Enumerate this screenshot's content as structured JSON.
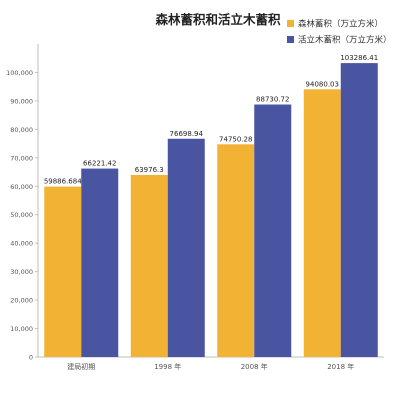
{
  "chart_data": {
    "type": "bar",
    "title": "森林蓄积和活立木蓄积",
    "xlabel": "",
    "ylabel": "",
    "categories": [
      "建局初期",
      "1998 年",
      "2008 年",
      "2018 年"
    ],
    "series": [
      {
        "name": "森林蓄积（万立方米）",
        "values": [
          59886.684,
          63976.3,
          74750.28,
          94080.03
        ],
        "labels": [
          "59886.684",
          "63976.3",
          "74750.28",
          "94080.03"
        ],
        "color": "#F2B233"
      },
      {
        "name": "活立木蓄积（万立方米）",
        "values": [
          66221.42,
          76698.94,
          88730.72,
          103286.41
        ],
        "labels": [
          "66221.42",
          "76698.94",
          "88730.72",
          "103286.41"
        ],
        "color": "#4A55A2"
      }
    ],
    "ylim": [
      0,
      110000
    ],
    "yticks": [
      0,
      10000,
      20000,
      30000,
      40000,
      50000,
      60000,
      70000,
      80000,
      90000,
      100000
    ],
    "ytick_labels": [
      "0",
      "10,000",
      "20,000",
      "30,000",
      "40,000",
      "50,000",
      "60,000",
      "70,000",
      "80,000",
      "90,000",
      "100,000"
    ],
    "grid": false,
    "legend_position": "top-right"
  }
}
